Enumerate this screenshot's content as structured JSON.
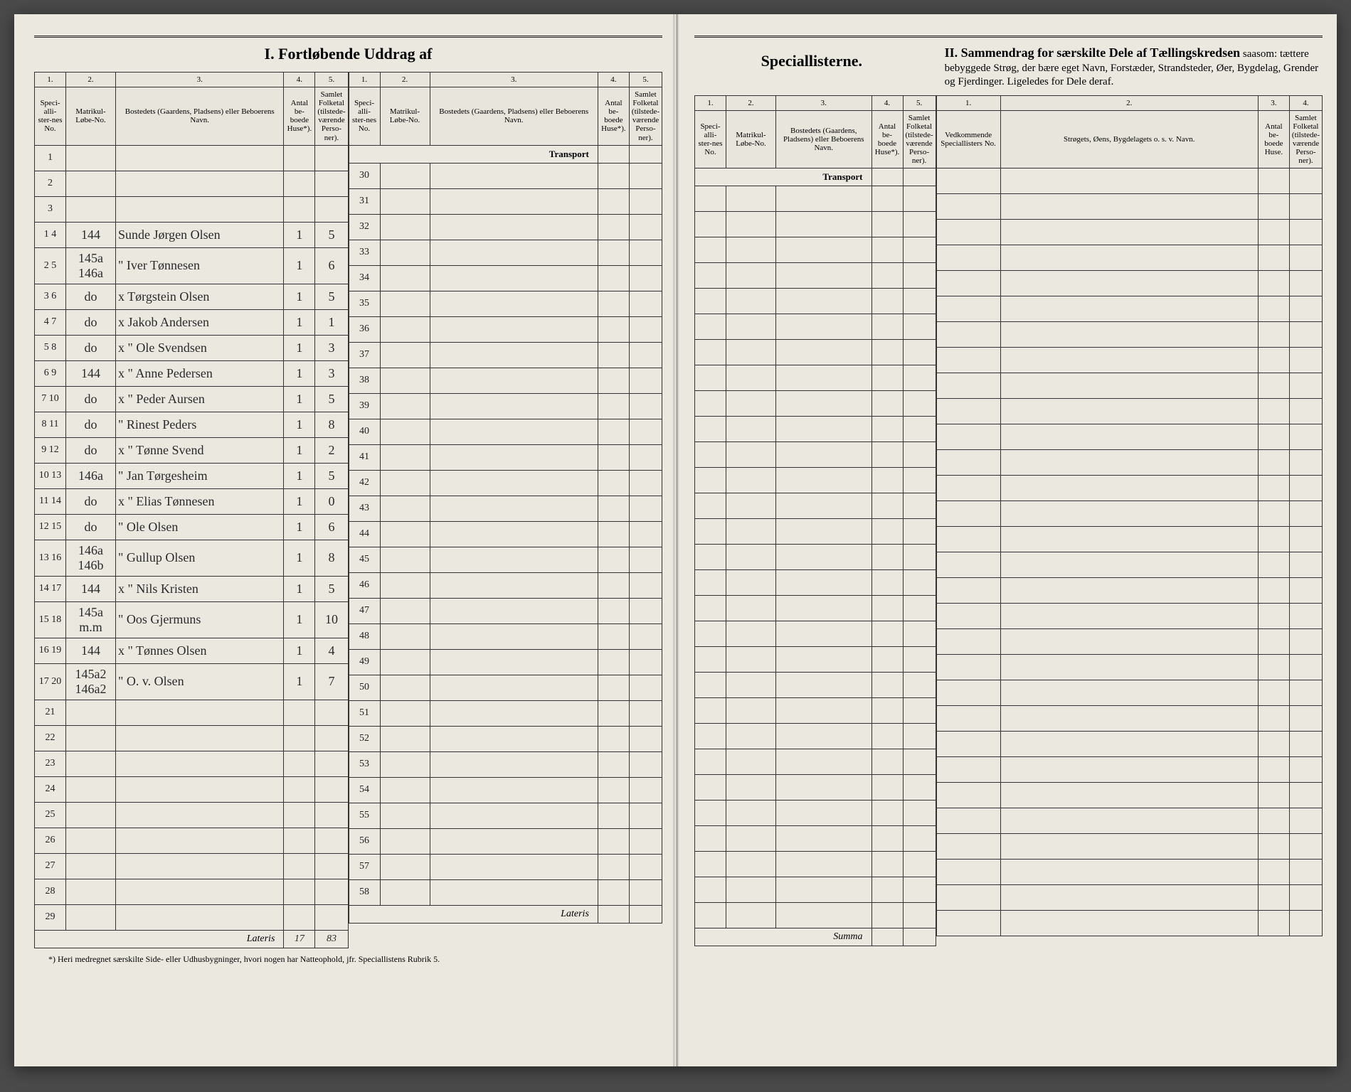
{
  "titles": {
    "main_left": "I.  Fortløbende Uddrag af",
    "main_right_cont": "Speciallisterne.",
    "section2": "II.  Sammendrag for særskilte Dele af Tællingskredsen",
    "section2_sub": " saasom: tættere bebyggede Strøg, der bære eget Navn, Forstæder, Strandsteder, Øer, Bygdelag, Grender og Fjerdinger. Ligeledes for Dele deraf.",
    "transport": "Transport",
    "lateris": "Lateris",
    "summa": "Summa",
    "footnote": "*) Heri medregnet særskilte Side- eller Udhusbygninger, hvori nogen har Natteophold, jfr. Speciallistens Rubrik 5."
  },
  "cols": {
    "n1": "1.",
    "n2": "2.",
    "n3": "3.",
    "n4": "4.",
    "n5": "5.",
    "h1": "Speci-alli-ster-nes No.",
    "h2": "Matrikul-Løbe-No.",
    "h3": "Bostedets (Gaardens, Pladsens) eller Beboerens Navn.",
    "h4": "Antal be-boede Huse*).",
    "h5": "Samlet Folketal (tilstede-værende Perso-ner).",
    "r1": "Vedkommende Speciallisters No.",
    "r2": "Strøgets, Øens, Bygdelagets o. s. v. Navn.",
    "r3": "Antal be-boede Huse.",
    "r4": "Samlet Folketal (tilstede-værende Perso-ner)."
  },
  "left_block1": [
    {
      "no": "1",
      "mat": "",
      "name": "",
      "huse": "",
      "folk": ""
    },
    {
      "no": "2",
      "mat": "",
      "name": "",
      "huse": "",
      "folk": ""
    },
    {
      "no": "3",
      "mat": "",
      "name": "",
      "huse": "",
      "folk": ""
    },
    {
      "no": "1  4",
      "mat": "144",
      "name": "Sunde Jørgen Olsen",
      "huse": "1",
      "folk": "5"
    },
    {
      "no": "2  5",
      "mat": "145a 146a",
      "name": "\"   Iver Tønnesen",
      "huse": "1",
      "folk": "6"
    },
    {
      "no": "3  6",
      "mat": "do",
      "name": "x  Tørgstein Olsen",
      "huse": "1",
      "folk": "5"
    },
    {
      "no": "4  7",
      "mat": "do",
      "name": "x   Jakob Andersen",
      "huse": "1",
      "folk": "1"
    },
    {
      "no": "5  8",
      "mat": "do",
      "name": "x  \"  Ole Svendsen",
      "huse": "1",
      "folk": "3"
    },
    {
      "no": "6  9",
      "mat": "144",
      "name": "x  \"  Anne Pedersen",
      "huse": "1",
      "folk": "3"
    },
    {
      "no": "7  10",
      "mat": "do",
      "name": "x  \"  Peder Aursen",
      "huse": "1",
      "folk": "5"
    },
    {
      "no": "8  11",
      "mat": "do",
      "name": "\"  Rinest Peders",
      "huse": "1",
      "folk": "8"
    },
    {
      "no": "9  12",
      "mat": "do",
      "name": "x  \"  Tønne Svend",
      "huse": "1",
      "folk": "2"
    },
    {
      "no": "10 13",
      "mat": "146a",
      "name": "\"  Jan Tørgesheim",
      "huse": "1",
      "folk": "5"
    },
    {
      "no": "11 14",
      "mat": "do",
      "name": "x  \"  Elias Tønnesen",
      "huse": "1",
      "folk": "0"
    },
    {
      "no": "12 15",
      "mat": "do",
      "name": "\"  Ole Olsen",
      "huse": "1",
      "folk": "6"
    },
    {
      "no": "13 16",
      "mat": "146a 146b",
      "name": "\"  Gullup Olsen",
      "huse": "1",
      "folk": "8"
    },
    {
      "no": "14 17",
      "mat": "144",
      "name": "x  \"  Nils Kristen",
      "huse": "1",
      "folk": "5"
    },
    {
      "no": "15 18",
      "mat": "145a m.m",
      "name": "\"  Oos Gjermuns",
      "huse": "1",
      "folk": "10"
    },
    {
      "no": "16 19",
      "mat": "144",
      "name": "x  \"  Tønnes Olsen",
      "huse": "1",
      "folk": "4"
    },
    {
      "no": "17 20",
      "mat": "145a2 146a2",
      "name": "\"  O. v. Olsen",
      "huse": "1",
      "folk": "7"
    },
    {
      "no": "21",
      "mat": "",
      "name": "",
      "huse": "",
      "folk": ""
    },
    {
      "no": "22",
      "mat": "",
      "name": "",
      "huse": "",
      "folk": ""
    },
    {
      "no": "23",
      "mat": "",
      "name": "",
      "huse": "",
      "folk": ""
    },
    {
      "no": "24",
      "mat": "",
      "name": "",
      "huse": "",
      "folk": ""
    },
    {
      "no": "25",
      "mat": "",
      "name": "",
      "huse": "",
      "folk": ""
    },
    {
      "no": "26",
      "mat": "",
      "name": "",
      "huse": "",
      "folk": ""
    },
    {
      "no": "27",
      "mat": "",
      "name": "",
      "huse": "",
      "folk": ""
    },
    {
      "no": "28",
      "mat": "",
      "name": "",
      "huse": "",
      "folk": ""
    },
    {
      "no": "29",
      "mat": "",
      "name": "",
      "huse": "",
      "folk": ""
    }
  ],
  "left_block2_start": 30,
  "left_block2_end": 58,
  "lateris_left": {
    "huse": "17",
    "folk": "83"
  },
  "colors": {
    "paper": "#ebe8e0",
    "ink": "#222222",
    "handwriting": "#2a2a2a",
    "border": "#333333"
  }
}
